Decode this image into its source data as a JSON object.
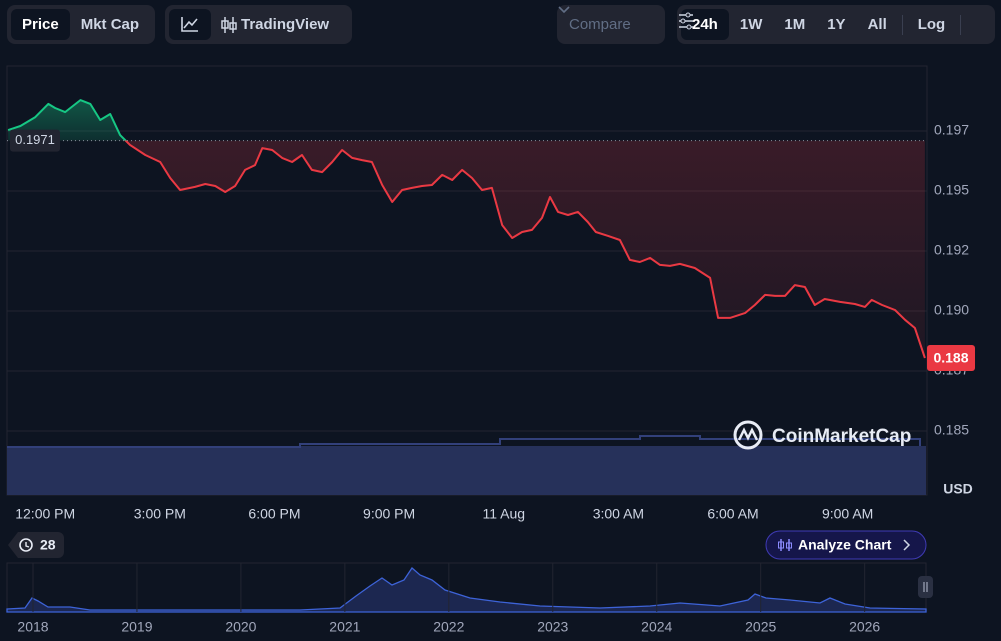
{
  "toolbar": {
    "price": "Price",
    "mkt_cap": "Mkt Cap",
    "tradingview": "TradingView",
    "compare": "Compare",
    "ranges": [
      "24h",
      "1W",
      "1M",
      "1Y",
      "All"
    ],
    "log": "Log"
  },
  "watermark": "CoinMarketCap",
  "history_count": "28",
  "analyze": "Analyze Chart",
  "chart_data": [
    {
      "type": "line",
      "y_label": "USD",
      "x": [
        -0.97,
        -0.65,
        -0.26,
        0.08,
        0.26,
        0.52,
        0.92,
        1.18,
        1.44,
        1.7,
        1.96,
        2.22,
        2.62,
        3.01,
        3.27,
        3.53,
        3.92,
        4.19,
        4.45,
        4.71,
        4.97,
        5.23,
        5.49,
        5.68,
        5.94,
        6.2,
        6.46,
        6.72,
        6.98,
        7.25,
        7.51,
        7.77,
        8.03,
        8.29,
        8.55,
        8.82,
        9.08,
        9.34,
        9.6,
        9.86,
        10.12,
        10.39,
        10.65,
        10.91,
        11.17,
        11.43,
        11.69,
        11.96,
        12.22,
        12.48,
        12.74,
        13.0,
        13.21,
        13.42,
        13.68,
        13.94,
        14.2,
        14.41,
        14.73,
        15.04,
        15.3,
        15.56,
        15.83,
        16.09,
        16.35,
        16.61,
        17.0,
        17.4,
        17.61,
        17.92,
        18.32,
        18.57,
        18.84,
        19.1,
        19.36,
        19.62,
        19.88,
        20.14,
        20.4,
        20.8,
        21.19,
        21.45,
        21.63,
        21.9,
        22.24,
        22.5,
        22.76,
        23.02
      ],
      "values": [
        0.19754,
        0.19771,
        0.19808,
        0.19863,
        0.19846,
        0.19829,
        0.19879,
        0.19863,
        0.19796,
        0.19821,
        0.19733,
        0.19692,
        0.1965,
        0.19621,
        0.19554,
        0.19504,
        0.19517,
        0.19529,
        0.19521,
        0.19496,
        0.19521,
        0.19588,
        0.19608,
        0.19679,
        0.19671,
        0.19638,
        0.19621,
        0.1965,
        0.19588,
        0.19579,
        0.19621,
        0.19671,
        0.19638,
        0.19629,
        0.19621,
        0.19525,
        0.19454,
        0.19504,
        0.19513,
        0.19521,
        0.19525,
        0.19567,
        0.19546,
        0.19588,
        0.19554,
        0.19504,
        0.19513,
        0.19358,
        0.19304,
        0.19329,
        0.19338,
        0.19388,
        0.19475,
        0.19413,
        0.194,
        0.19413,
        0.19371,
        0.19329,
        0.19313,
        0.19296,
        0.19213,
        0.19204,
        0.19221,
        0.19192,
        0.19188,
        0.19196,
        0.19179,
        0.19138,
        0.18971,
        0.18971,
        0.18992,
        0.19025,
        0.19067,
        0.19063,
        0.19063,
        0.19108,
        0.191,
        0.19025,
        0.1905,
        0.19038,
        0.19029,
        0.19017,
        0.19046,
        0.19025,
        0.19004,
        0.18963,
        0.18929,
        0.18804
      ],
      "last_value_label": "0.188",
      "reference": 0.1971,
      "color_up": "#16c784",
      "color_down": "#ea3943",
      "xlim": [
        -1,
        23.05
      ],
      "xticks": [
        {
          "value": 0,
          "label": "12:00 PM"
        },
        {
          "value": 3,
          "label": "3:00 PM"
        },
        {
          "value": 6,
          "label": "6:00 PM"
        },
        {
          "value": 9,
          "label": "9:00 PM"
        },
        {
          "value": 12,
          "label": "11 Aug"
        },
        {
          "value": 15,
          "label": "3:00 AM"
        },
        {
          "value": 18,
          "label": "6:00 AM"
        },
        {
          "value": 21,
          "label": "9:00 AM"
        }
      ],
      "ylim": [
        0.18233,
        0.20021
      ],
      "yticks": [
        {
          "value": 0.1975,
          "label": "0.197"
        },
        {
          "value": 0.195,
          "label": "0.195"
        },
        {
          "value": 0.1925,
          "label": "0.192"
        },
        {
          "value": 0.19,
          "label": "0.190"
        },
        {
          "value": 0.1875,
          "label": "0.187"
        },
        {
          "value": 0.185,
          "label": "0.185"
        }
      ],
      "grid": true
    },
    {
      "type": "navigator",
      "xlim": [
        2017.75,
        2026.59
      ],
      "xticks": [
        2018,
        2019,
        2020,
        2021,
        2022,
        2023,
        2024,
        2025,
        2026
      ]
    }
  ]
}
